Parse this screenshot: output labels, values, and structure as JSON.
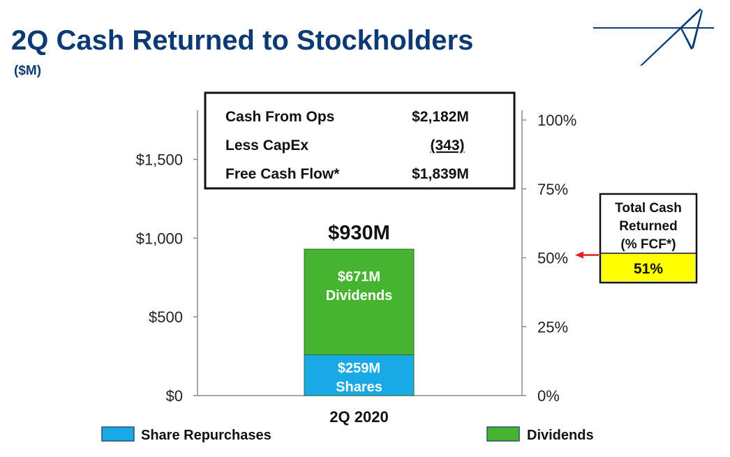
{
  "header": {
    "title": "2Q Cash Returned to Stockholders",
    "subtitle": "($M)"
  },
  "info_box": {
    "rows": [
      {
        "label": "Cash From Ops",
        "value": "$2,182M"
      },
      {
        "label": "Less CapEx",
        "value": "(343)"
      },
      {
        "label": "Free Cash Flow*",
        "value": "$1,839M"
      }
    ]
  },
  "callout": {
    "title_lines": [
      "Total Cash",
      "Returned",
      "(% FCF*)"
    ],
    "value": "51%"
  },
  "colors": {
    "title": "#0e3a74",
    "shares": "#18a9e6",
    "dividends": "#46b430",
    "highlight": "#ffff00",
    "arrow": "#e02020"
  },
  "chart_data": {
    "type": "bar",
    "stacked": true,
    "categories": [
      "2Q 2020"
    ],
    "series": [
      {
        "name": "Share Repurchases",
        "values": [
          259
        ],
        "label": [
          "$259M",
          "Shares"
        ]
      },
      {
        "name": "Dividends",
        "values": [
          671
        ],
        "label": [
          "$671M",
          "Dividends"
        ]
      }
    ],
    "total_label": "$930M",
    "y_left": {
      "ylim": [
        0,
        1750
      ],
      "ticks": [
        0,
        500,
        1000,
        1500
      ],
      "tick_labels": [
        "$0",
        "$500",
        "$1,000",
        "$1,500"
      ]
    },
    "y_right": {
      "ylim": [
        0,
        1
      ],
      "ticks": [
        0,
        0.25,
        0.5,
        0.75,
        1
      ],
      "tick_labels": [
        "0%",
        "25%",
        "50%",
        "75%",
        "100%"
      ]
    },
    "marker": {
      "axis": "right",
      "value": 0.51
    },
    "legend": {
      "placement": "bottom",
      "entries": [
        "Share Repurchases",
        "Dividends"
      ]
    },
    "grid": false
  }
}
